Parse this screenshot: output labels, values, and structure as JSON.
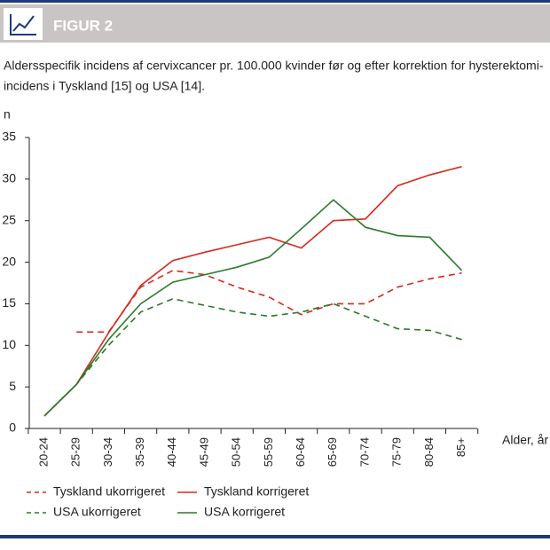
{
  "header": {
    "title": "FIGUR 2"
  },
  "chart_data": {
    "type": "line",
    "title": [
      "Aldersspecifik incidens af cervixcancer pr. 100.000 kvinder før og efter korrektion for hysterektomi-",
      "incidens i Tyskland [15] og USA [14]."
    ],
    "y_label": "n",
    "x_label": "Alder, år",
    "categories": [
      "20-24",
      "25-29",
      "30-34",
      "35-39",
      "40-44",
      "45-49",
      "50-54",
      "55-59",
      "60-64",
      "65-69",
      "70-74",
      "75-79",
      "80-84",
      "85+"
    ],
    "ylim": [
      0,
      35
    ],
    "yticks": [
      0,
      5,
      10,
      15,
      20,
      25,
      30,
      35
    ],
    "series": [
      {
        "name": "Tyskland ukorrigeret",
        "color": "#d8281c",
        "dashed": true,
        "values": [
          null,
          11.6,
          11.6,
          17.0,
          19.0,
          18.5,
          17.0,
          15.8,
          13.7,
          15.0,
          15.0,
          17.0,
          18.0,
          18.7
        ]
      },
      {
        "name": "Tyskland korrigeret",
        "color": "#d8281c",
        "dashed": false,
        "values": [
          1.5,
          5.3,
          11.5,
          17.2,
          20.2,
          21.2,
          22.1,
          23.0,
          21.7,
          25.0,
          25.2,
          29.2,
          30.5,
          31.5
        ]
      },
      {
        "name": "USA ukorrigeret",
        "color": "#2b7a2b",
        "dashed": true,
        "values": [
          1.5,
          5.3,
          10.0,
          14.0,
          15.6,
          14.8,
          14.0,
          13.5,
          14.0,
          15.0,
          13.5,
          12.0,
          11.8,
          10.7
        ]
      },
      {
        "name": "USA korrigeret",
        "color": "#2b7a2b",
        "dashed": false,
        "values": [
          1.5,
          5.3,
          10.7,
          15.0,
          17.6,
          18.5,
          19.4,
          20.6,
          24.0,
          27.5,
          24.2,
          23.2,
          23.0,
          19.0
        ]
      }
    ]
  }
}
